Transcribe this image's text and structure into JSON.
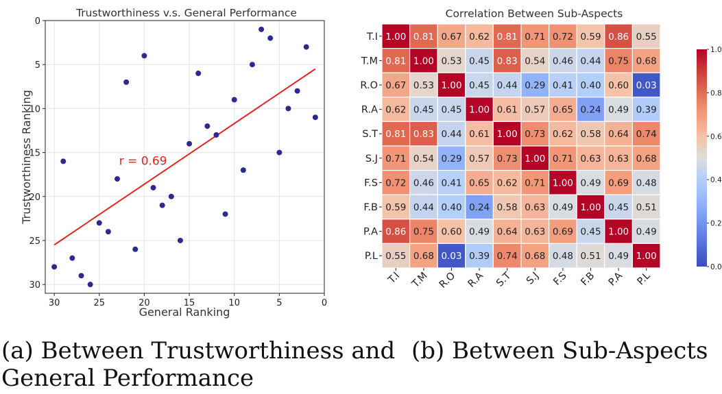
{
  "captions": {
    "a_line1": "(a) Between Trustworthiness and",
    "a_line2": "General Performance",
    "b": "(b) Between Sub-Aspects"
  },
  "chart_data": [
    {
      "type": "scatter",
      "title": "Trustworthiness v.s. General Performance",
      "xlabel": "General Ranking",
      "ylabel": "Trustworthiness Ranking",
      "xlim": [
        31,
        0
      ],
      "ylim": [
        31,
        0
      ],
      "x_inverted": true,
      "y_inverted": true,
      "xticks": [
        30,
        25,
        20,
        15,
        10,
        5,
        0
      ],
      "yticks": [
        0,
        5,
        10,
        15,
        20,
        25,
        30
      ],
      "grid": true,
      "point_color": "#2b2b8f",
      "line_color": "#e8231f",
      "annotation": "r = 0.69",
      "annotation_at": [
        22.8,
        16.4
      ],
      "points": [
        {
          "x": 30,
          "y": 28
        },
        {
          "x": 29,
          "y": 16
        },
        {
          "x": 28,
          "y": 27
        },
        {
          "x": 27,
          "y": 29
        },
        {
          "x": 26,
          "y": 30
        },
        {
          "x": 25,
          "y": 23
        },
        {
          "x": 24,
          "y": 24
        },
        {
          "x": 23,
          "y": 18
        },
        {
          "x": 22,
          "y": 7
        },
        {
          "x": 21,
          "y": 26
        },
        {
          "x": 20,
          "y": 4
        },
        {
          "x": 19,
          "y": 19
        },
        {
          "x": 18,
          "y": 21
        },
        {
          "x": 17,
          "y": 20
        },
        {
          "x": 16,
          "y": 25
        },
        {
          "x": 15,
          "y": 14
        },
        {
          "x": 14,
          "y": 6
        },
        {
          "x": 13,
          "y": 12
        },
        {
          "x": 12,
          "y": 13
        },
        {
          "x": 11,
          "y": 22
        },
        {
          "x": 10,
          "y": 9
        },
        {
          "x": 9,
          "y": 17
        },
        {
          "x": 8,
          "y": 5
        },
        {
          "x": 7,
          "y": 1
        },
        {
          "x": 6,
          "y": 2
        },
        {
          "x": 5,
          "y": 15
        },
        {
          "x": 4,
          "y": 10
        },
        {
          "x": 3,
          "y": 8
        },
        {
          "x": 2,
          "y": 3
        },
        {
          "x": 1,
          "y": 11
        }
      ],
      "fit_line": {
        "x": [
          30,
          1
        ],
        "y": [
          25.5,
          5.5
        ]
      }
    },
    {
      "type": "heatmap",
      "title": "Correlation Between Sub-Aspects",
      "labels": [
        "T.I",
        "T.M",
        "R.O",
        "R.A",
        "S.T",
        "S.J",
        "F.S",
        "F.B",
        "P.A",
        "P.L"
      ],
      "colormap": "coolwarm",
      "vmin": 0.0,
      "vmax": 1.0,
      "colorbar_ticks": [
        0.0,
        0.2,
        0.4,
        0.6,
        0.8,
        1.0
      ],
      "colorbar_tick_labels": [
        "0.0",
        "0.2",
        "0.4",
        "0.6",
        "0.8",
        "1.0"
      ],
      "values": [
        [
          1.0,
          0.81,
          0.67,
          0.62,
          0.81,
          0.71,
          0.72,
          0.59,
          0.86,
          0.55
        ],
        [
          0.81,
          1.0,
          0.53,
          0.45,
          0.83,
          0.54,
          0.46,
          0.44,
          0.75,
          0.68
        ],
        [
          0.67,
          0.53,
          1.0,
          0.45,
          0.44,
          0.29,
          0.41,
          0.4,
          0.6,
          0.03
        ],
        [
          0.62,
          0.45,
          0.45,
          1.0,
          0.61,
          0.57,
          0.65,
          0.24,
          0.49,
          0.39
        ],
        [
          0.81,
          0.83,
          0.44,
          0.61,
          1.0,
          0.73,
          0.62,
          0.58,
          0.64,
          0.74
        ],
        [
          0.71,
          0.54,
          0.29,
          0.57,
          0.73,
          1.0,
          0.71,
          0.63,
          0.63,
          0.68
        ],
        [
          0.72,
          0.46,
          0.41,
          0.65,
          0.62,
          0.71,
          1.0,
          0.49,
          0.69,
          0.48
        ],
        [
          0.59,
          0.44,
          0.4,
          0.24,
          0.58,
          0.63,
          0.49,
          1.0,
          0.45,
          0.51
        ],
        [
          0.86,
          0.75,
          0.6,
          0.49,
          0.64,
          0.63,
          0.69,
          0.45,
          1.0,
          0.49
        ],
        [
          0.55,
          0.68,
          0.03,
          0.39,
          0.74,
          0.68,
          0.48,
          0.51,
          0.49,
          1.0
        ]
      ]
    }
  ]
}
